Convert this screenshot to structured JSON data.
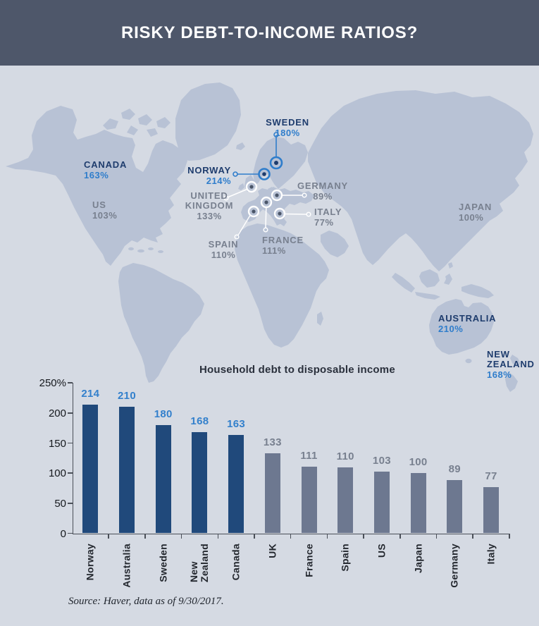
{
  "header": {
    "title": "RISKY DEBT-TO-INCOME RATIOS?"
  },
  "map": {
    "labels": [
      {
        "id": "canada",
        "country": "CANADA",
        "value": "163%",
        "highlight": true
      },
      {
        "id": "us",
        "country": "US",
        "value": "103%",
        "highlight": false
      },
      {
        "id": "norway",
        "country": "NORWAY",
        "value": "214%",
        "highlight": true
      },
      {
        "id": "sweden",
        "country": "SWEDEN",
        "value": "180%",
        "highlight": true
      },
      {
        "id": "united-kingdom",
        "country": "UNITED KINGDOM",
        "value": "133%",
        "highlight": false
      },
      {
        "id": "germany",
        "country": "GERMANY",
        "value": "89%",
        "highlight": false
      },
      {
        "id": "italy",
        "country": "ITALY",
        "value": "77%",
        "highlight": false
      },
      {
        "id": "france",
        "country": "FRANCE",
        "value": "111%",
        "highlight": false
      },
      {
        "id": "spain",
        "country": "SPAIN",
        "value": "110%",
        "highlight": false
      },
      {
        "id": "japan",
        "country": "JAPAN",
        "value": "100%",
        "highlight": false
      },
      {
        "id": "australia",
        "country": "AUSTRALIA",
        "value": "210%",
        "highlight": true
      },
      {
        "id": "new-zealand",
        "country": "NEW ZEALAND",
        "value": "168%",
        "highlight": true
      }
    ]
  },
  "chart_data": {
    "type": "bar",
    "title": "Household debt to disposable income",
    "categories": [
      "Norway",
      "Australia",
      "Sweden",
      "New Zealand",
      "Canada",
      "UK",
      "France",
      "Spain",
      "US",
      "Japan",
      "Germany",
      "Italy"
    ],
    "category_labels": [
      "Norway",
      "Australia",
      "Sweden",
      "New\nZealand",
      "Canada",
      "UK",
      "France",
      "Spain",
      "US",
      "Japan",
      "Germany",
      "Italy"
    ],
    "values": [
      214,
      210,
      180,
      168,
      163,
      133,
      111,
      110,
      103,
      100,
      89,
      77
    ],
    "highlighted": [
      true,
      true,
      true,
      true,
      true,
      false,
      false,
      false,
      false,
      false,
      false,
      false
    ],
    "ylim": [
      0,
      250
    ],
    "ytick_values": [
      0,
      50,
      100,
      150,
      200,
      250
    ],
    "ytick_labels": [
      "0",
      "50",
      "100",
      "150",
      "200",
      "250%"
    ],
    "grid": false,
    "legend": "none",
    "xlabel": "",
    "ylabel": ""
  },
  "source": {
    "text": "Source: Haver, data as of 9/30/2017."
  },
  "colors": {
    "header_bg": "#4e576a",
    "ocean": "#d5dae3",
    "land": "#b8c2d5",
    "country_navy": "#1e3c6d",
    "value_blue": "#2f7dcb",
    "label_gray": "#78808f",
    "bar_highlight": "#20497b",
    "bar_normal": "#6d7890",
    "marker_blue": "#2f7dcb",
    "marker_white": "#ffffff"
  }
}
